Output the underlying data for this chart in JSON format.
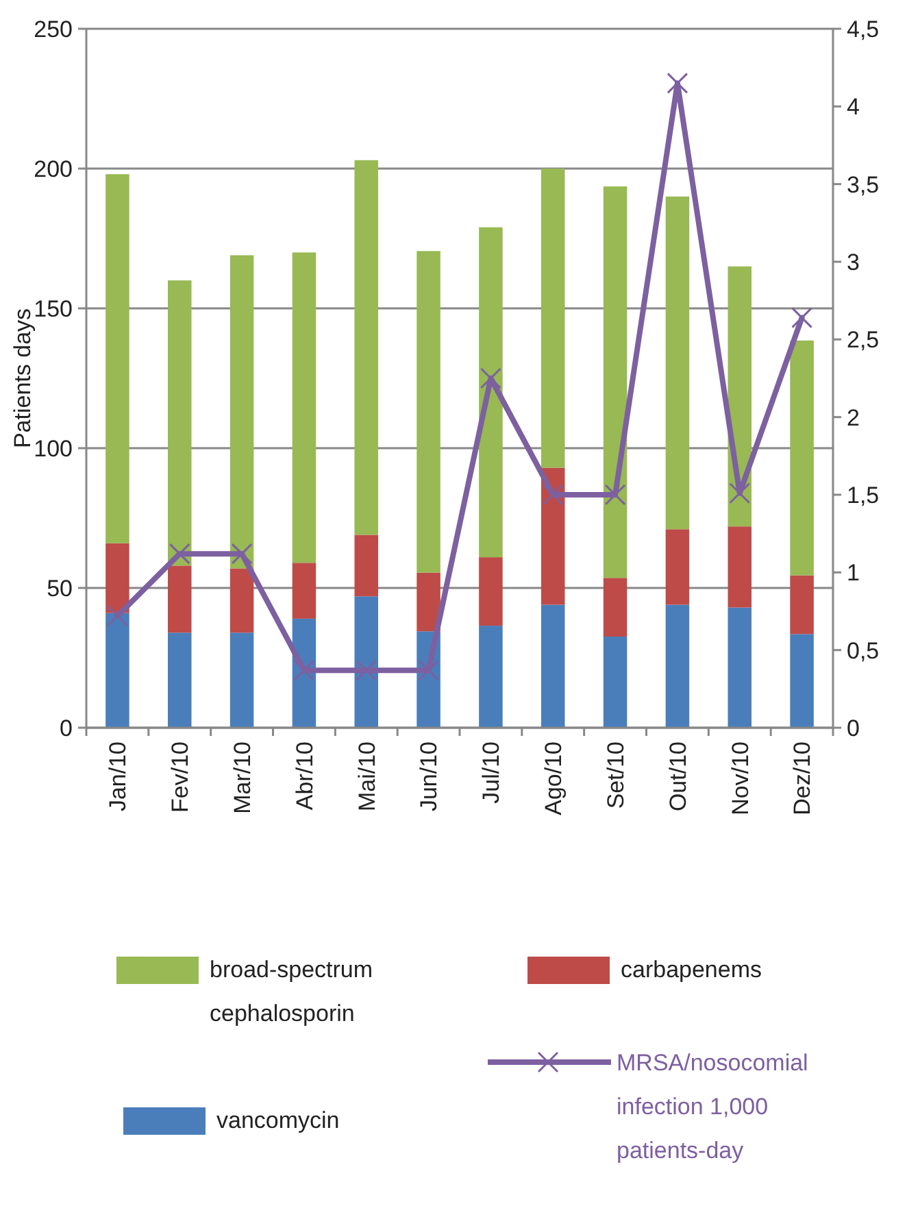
{
  "chart_data": {
    "type": "bar",
    "stacked": true,
    "ylabel": "Patients days",
    "categories": [
      "Jan/10",
      "Fev/10",
      "Mar/10",
      "Abr/10",
      "Mai/10",
      "Jun/10",
      "Jul/10",
      "Ago/10",
      "Set/10",
      "Out/10",
      "Nov/10",
      "Dez/10"
    ],
    "series": [
      {
        "name": "vancomycin",
        "color": "#4a7ebb",
        "values": [
          41,
          34,
          34,
          39,
          47,
          34.5,
          36.5,
          44,
          32.6,
          44,
          43,
          33.5
        ]
      },
      {
        "name": "carbapenems",
        "color": "#be4b48",
        "values": [
          25,
          24,
          23,
          20,
          22,
          21,
          24.5,
          49,
          21,
          27,
          29,
          21
        ]
      },
      {
        "name": "broad-spectrum cephalosporin",
        "color": "#98b954",
        "values": [
          132,
          102,
          112,
          111,
          134,
          115,
          118,
          107,
          140,
          119,
          93,
          84
        ]
      },
      {
        "name": "MRSA/nosocomial infection 1,000 patients-day",
        "type": "line",
        "axis": "y2",
        "color": "#7d60a0",
        "marker": "cross",
        "line_style": "solid",
        "values": [
          0.72,
          1.12,
          1.12,
          0.37,
          0.37,
          0.37,
          2.25,
          1.5,
          1.5,
          4.15,
          1.51,
          2.64
        ]
      }
    ],
    "ylim": [
      0,
      250
    ],
    "yticks": [
      0,
      50,
      100,
      150,
      200,
      250
    ],
    "y2lim": [
      0,
      4.5
    ],
    "y2ticks": [
      0,
      {
        "value": 0.5,
        "label": "0,5"
      },
      1,
      {
        "value": 1.5,
        "label": "1,5"
      },
      2,
      {
        "value": 2.5,
        "label": "2,5"
      },
      3,
      {
        "value": 3.5,
        "label": "3,5"
      },
      4,
      {
        "value": 4.5,
        "label": "4,5"
      }
    ],
    "grid": "y",
    "legend": "bottom"
  }
}
